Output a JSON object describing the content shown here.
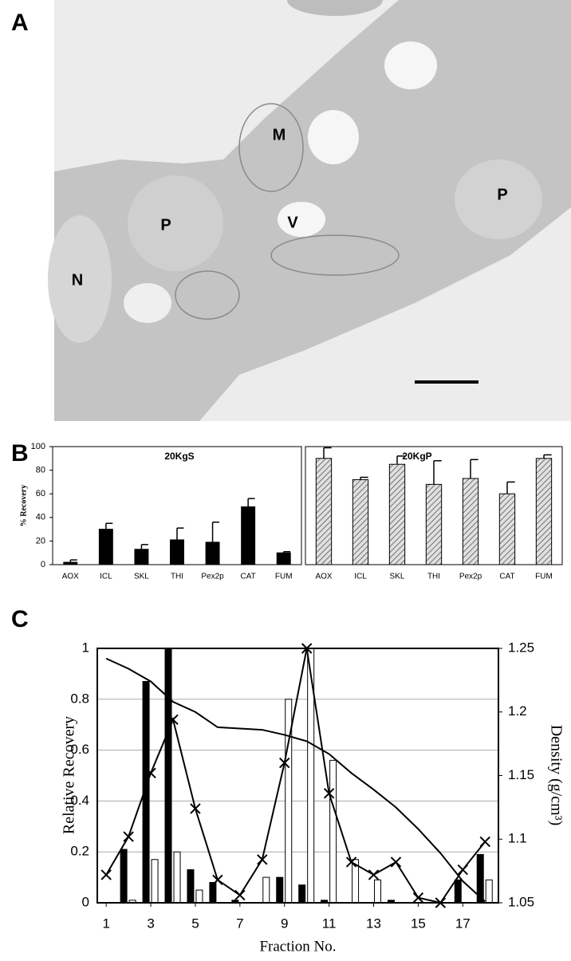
{
  "panel_labels": [
    "A",
    "B",
    "C"
  ],
  "micrograph": {
    "labels": [
      "M",
      "V",
      "P",
      "P",
      "N"
    ]
  },
  "chart_data": [
    {
      "type": "bar",
      "title": "20KgS",
      "ylabel": "% Recovery",
      "categories": [
        "AOX",
        "ICL",
        "SKL",
        "THI",
        "Pex2p",
        "CAT",
        "FUM"
      ],
      "values": [
        2,
        30,
        13,
        21,
        19,
        49,
        10
      ],
      "errors": [
        2,
        5,
        4,
        10,
        17,
        7,
        1
      ],
      "color": "#000000",
      "ylim": [
        0,
        100
      ],
      "yticks": [
        0,
        20,
        40,
        60,
        80,
        100
      ]
    },
    {
      "type": "bar",
      "title": "20KgP",
      "categories": [
        "AOX",
        "ICL",
        "SKL",
        "THI",
        "Pex2p",
        "CAT",
        "FUM"
      ],
      "values": [
        90,
        72,
        85,
        68,
        73,
        60,
        90
      ],
      "errors": [
        9,
        2,
        7,
        20,
        16,
        10,
        3
      ],
      "color": "#999999",
      "hatch": true,
      "ylim": [
        0,
        100
      ]
    },
    {
      "type": "combo",
      "xlabel": "Fraction No.",
      "ylabel": "Relative Recovery",
      "y2label": "Density (g/cm³)",
      "x": [
        1,
        2,
        3,
        4,
        5,
        6,
        7,
        8,
        9,
        10,
        11,
        12,
        13,
        14,
        15,
        16,
        17,
        18
      ],
      "xlim": [
        0.6,
        18.6
      ],
      "xticks": [
        1,
        3,
        5,
        7,
        9,
        11,
        13,
        15,
        17
      ],
      "ylim": [
        0,
        1
      ],
      "yticks": [
        0,
        0.2,
        0.4,
        0.6,
        0.8,
        1
      ],
      "y2lim": [
        1.05,
        1.25
      ],
      "y2ticks": [
        1.05,
        1.1,
        1.15,
        1.2,
        1.25
      ],
      "grid": true,
      "series": [
        {
          "type": "bar",
          "color": "#000000",
          "values": [
            0,
            0.21,
            0.87,
            1.0,
            0.13,
            0.08,
            0.01,
            0,
            0.1,
            0.07,
            0.01,
            0,
            0,
            0.01,
            0,
            0,
            0.09,
            0.19
          ]
        },
        {
          "type": "bar",
          "color": "#ffffff",
          "values": [
            0,
            0.01,
            0.17,
            0.2,
            0.05,
            0,
            0,
            0.1,
            0.8,
            1.0,
            0.56,
            0.17,
            0.09,
            0,
            0,
            0,
            0,
            0.09
          ]
        },
        {
          "type": "line",
          "marker": "x",
          "color": "#000000",
          "values": [
            0.11,
            0.26,
            0.51,
            0.72,
            0.37,
            0.09,
            0.03,
            0.17,
            0.55,
            1.0,
            0.43,
            0.16,
            0.11,
            0.16,
            0.02,
            0,
            0.13,
            0.24
          ]
        },
        {
          "type": "line",
          "color": "#000000",
          "axis": "y2",
          "values": [
            1.242,
            1.234,
            1.224,
            1.208,
            1.2,
            1.188,
            1.187,
            1.186,
            1.182,
            1.177,
            1.167,
            1.152,
            1.139,
            1.125,
            1.108,
            1.089,
            1.067,
            1.051
          ]
        }
      ]
    }
  ]
}
